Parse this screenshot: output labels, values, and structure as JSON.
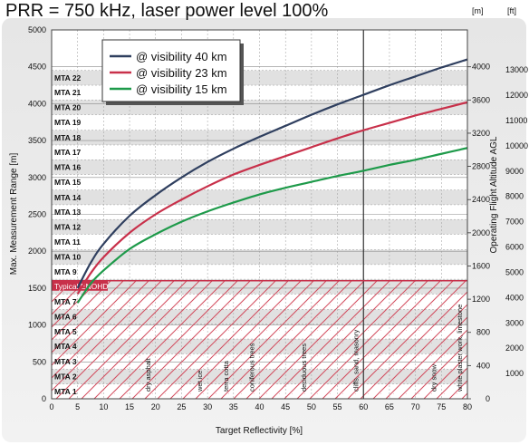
{
  "chart_data": {
    "type": "line",
    "title": "PRR = 750 kHz, laser power level 100%",
    "xlabel": "Target Reflectivity [%]",
    "ylabel": "Max. Measurement Range [m]",
    "y2label": "Operating Flight Altitude AGL",
    "x_ticks": [
      0,
      5,
      10,
      15,
      20,
      25,
      30,
      35,
      40,
      45,
      50,
      55,
      60,
      65,
      70,
      75,
      80
    ],
    "y_ticks": [
      0,
      500,
      1000,
      1500,
      2000,
      2500,
      3000,
      3500,
      4000,
      4500,
      5000
    ],
    "xlim": [
      0,
      80
    ],
    "ylim": [
      0,
      5000
    ],
    "series": [
      {
        "name": "@ visibility 40 km",
        "color": "#2f3f5f",
        "x": [
          5,
          7.5,
          10,
          15,
          20,
          25,
          30,
          35,
          40,
          45,
          50,
          55,
          60,
          65,
          70,
          75,
          80
        ],
        "y": [
          1500,
          1840,
          2100,
          2480,
          2760,
          3000,
          3210,
          3390,
          3550,
          3700,
          3850,
          3990,
          4120,
          4250,
          4370,
          4490,
          4600
        ]
      },
      {
        "name": "@ visibility 23 km",
        "color": "#c8304a",
        "x": [
          5,
          7.5,
          10,
          15,
          20,
          25,
          30,
          35,
          40,
          45,
          50,
          55,
          60,
          65,
          70,
          75,
          80
        ],
        "y": [
          1420,
          1700,
          1920,
          2250,
          2500,
          2700,
          2880,
          3040,
          3170,
          3290,
          3410,
          3530,
          3640,
          3740,
          3840,
          3930,
          4020
        ]
      },
      {
        "name": "@ visibility 15 km",
        "color": "#1e9a4a",
        "x": [
          5,
          7.5,
          10,
          15,
          20,
          25,
          30,
          35,
          40,
          45,
          50,
          55,
          60,
          65,
          70,
          75,
          80
        ],
        "y": [
          1300,
          1560,
          1740,
          2030,
          2230,
          2400,
          2540,
          2660,
          2770,
          2860,
          2940,
          3020,
          3090,
          3170,
          3240,
          3320,
          3400
        ]
      }
    ],
    "mta_zones": [
      {
        "label": "MTA 1",
        "from": 0,
        "to": 200
      },
      {
        "label": "MTA 2",
        "from": 200,
        "to": 400
      },
      {
        "label": "MTA 3",
        "from": 400,
        "to": 610
      },
      {
        "label": "MTA 4",
        "from": 610,
        "to": 810
      },
      {
        "label": "MTA 5",
        "from": 810,
        "to": 1010
      },
      {
        "label": "MTA 6",
        "from": 1010,
        "to": 1210
      },
      {
        "label": "MTA 7",
        "from": 1210,
        "to": 1420
      },
      {
        "label": "MTA 8",
        "from": 1420,
        "to": 1620
      },
      {
        "label": "MTA 9",
        "from": 1620,
        "to": 1820
      },
      {
        "label": "MTA 10",
        "from": 1820,
        "to": 2020
      },
      {
        "label": "MTA 11",
        "from": 2020,
        "to": 2230
      },
      {
        "label": "MTA 12",
        "from": 2230,
        "to": 2430
      },
      {
        "label": "MTA 13",
        "from": 2430,
        "to": 2630
      },
      {
        "label": "MTA 14",
        "from": 2630,
        "to": 2830
      },
      {
        "label": "MTA 15",
        "from": 2830,
        "to": 3040
      },
      {
        "label": "MTA 16",
        "from": 3040,
        "to": 3240
      },
      {
        "label": "MTA 17",
        "from": 3240,
        "to": 3440
      },
      {
        "label": "MTA 18",
        "from": 3440,
        "to": 3640
      },
      {
        "label": "MTA 19",
        "from": 3640,
        "to": 3850
      },
      {
        "label": "MTA 20",
        "from": 3850,
        "to": 4050
      },
      {
        "label": "MTA 21",
        "from": 4050,
        "to": 4250
      },
      {
        "label": "MTA 22",
        "from": 4250,
        "to": 4450
      }
    ],
    "enohd": {
      "label": "Typical ENOHD",
      "y": 1600
    },
    "marker_line_x": 60,
    "annotations": [
      {
        "text": "dry asphalt",
        "x": 20
      },
      {
        "text": "wet ice",
        "x": 30
      },
      {
        "text": "terra cotta",
        "x": 35
      },
      {
        "text": "coniferous trees",
        "x": 40
      },
      {
        "text": "deciduous trees",
        "x": 50
      },
      {
        "text": "cliffs, sand, masonry",
        "x": 60
      },
      {
        "text": "dry snow",
        "x": 75
      },
      {
        "text": "white plaster work, limestone",
        "x": 80
      }
    ],
    "axis_m": {
      "unit": "[m]",
      "ticks": [
        0,
        400,
        800,
        1200,
        1600,
        2000,
        2400,
        2800,
        3200,
        3600,
        4000
      ]
    },
    "axis_ft": {
      "unit": "[ft]",
      "ticks": [
        1000,
        2000,
        3000,
        4000,
        5000,
        6000,
        7000,
        8000,
        9000,
        10000,
        11000,
        12000,
        13000
      ]
    },
    "legend_position": "top-left",
    "grid": true
  }
}
